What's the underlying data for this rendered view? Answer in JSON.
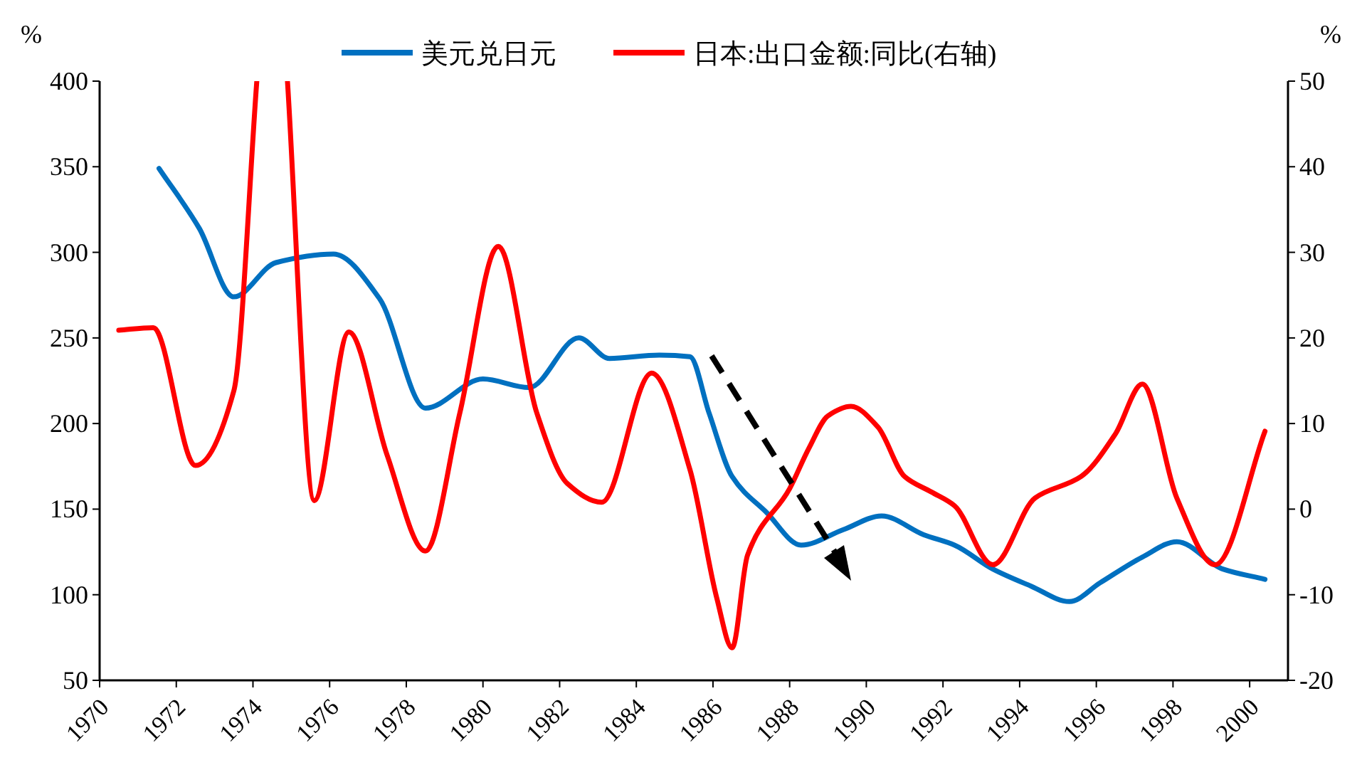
{
  "chart_data": {
    "type": "line",
    "ylabel": "%",
    "y2label": "%",
    "xlim": [
      1970,
      2001
    ],
    "xticks": [
      1970,
      1972,
      1974,
      1976,
      1978,
      1980,
      1982,
      1984,
      1986,
      1988,
      1990,
      1992,
      1994,
      1996,
      1998,
      2000
    ],
    "ylim": [
      50,
      400
    ],
    "yticks": [
      50,
      100,
      150,
      200,
      250,
      300,
      350,
      400
    ],
    "y2lim": [
      -20,
      50
    ],
    "y2ticks": [
      -20,
      -10,
      0,
      10,
      20,
      30,
      40,
      50
    ],
    "legend": "top",
    "grid": false,
    "marker": "none",
    "line_style": "solid",
    "series": [
      {
        "name": "美元兑日元",
        "color": "#0070c0",
        "x": [
          1971.55,
          1972.6,
          1973.5,
          1974.6,
          1976.1,
          1977.3,
          1978.5,
          1980,
          1981.2,
          1982.5,
          1983.3,
          1984.6,
          1985.4,
          1985.9,
          1986.5,
          1987.4,
          1988.3,
          1989.4,
          1990.4,
          1991.5,
          1992.3,
          1993.3,
          1994.3,
          1995.3,
          1996.1,
          1997.2,
          1998.1,
          1999.3,
          2000.4
        ],
        "values": [
          349,
          314,
          274,
          294,
          299,
          273,
          209,
          226,
          221,
          250,
          238,
          240,
          239,
          206,
          169,
          148,
          129,
          138,
          146,
          135,
          129,
          115,
          105,
          96,
          107,
          122,
          131,
          115,
          109
        ]
      },
      {
        "name": "日本:出口金额:同比(右轴)",
        "color": "#ff0000",
        "axis": "y2",
        "x": [
          1970.5,
          1971.4,
          1972.5,
          1973.5,
          1974.1,
          1974.5,
          1974.9,
          1975.6,
          1976.5,
          1977.5,
          1978.5,
          1979.4,
          1980.4,
          1981.4,
          1982.2,
          1983.1,
          1984.4,
          1985.4,
          1986.1,
          1986.5,
          1986.9,
          1988,
          1988.5,
          1989,
          1989.6,
          1990.3,
          1991,
          1991.7,
          1992.3,
          1993.3,
          1994.4,
          1995.6,
          1996.5,
          1997.2,
          1998.1,
          1999.1,
          2000.4
        ],
        "values": [
          20.9,
          21.2,
          5.1,
          13.8,
          50,
          null,
          50,
          1,
          20.7,
          6.3,
          -4.9,
          11.3,
          30.7,
          11.3,
          3,
          0.8,
          15.9,
          4.6,
          -10.4,
          -16.2,
          -5.4,
          2.4,
          7.1,
          10.9,
          12,
          9.6,
          3.8,
          2,
          0.4,
          -6.5,
          1.3,
          3.8,
          8.8,
          14.6,
          1.3,
          -6.5,
          9.1
        ]
      }
    ]
  }
}
